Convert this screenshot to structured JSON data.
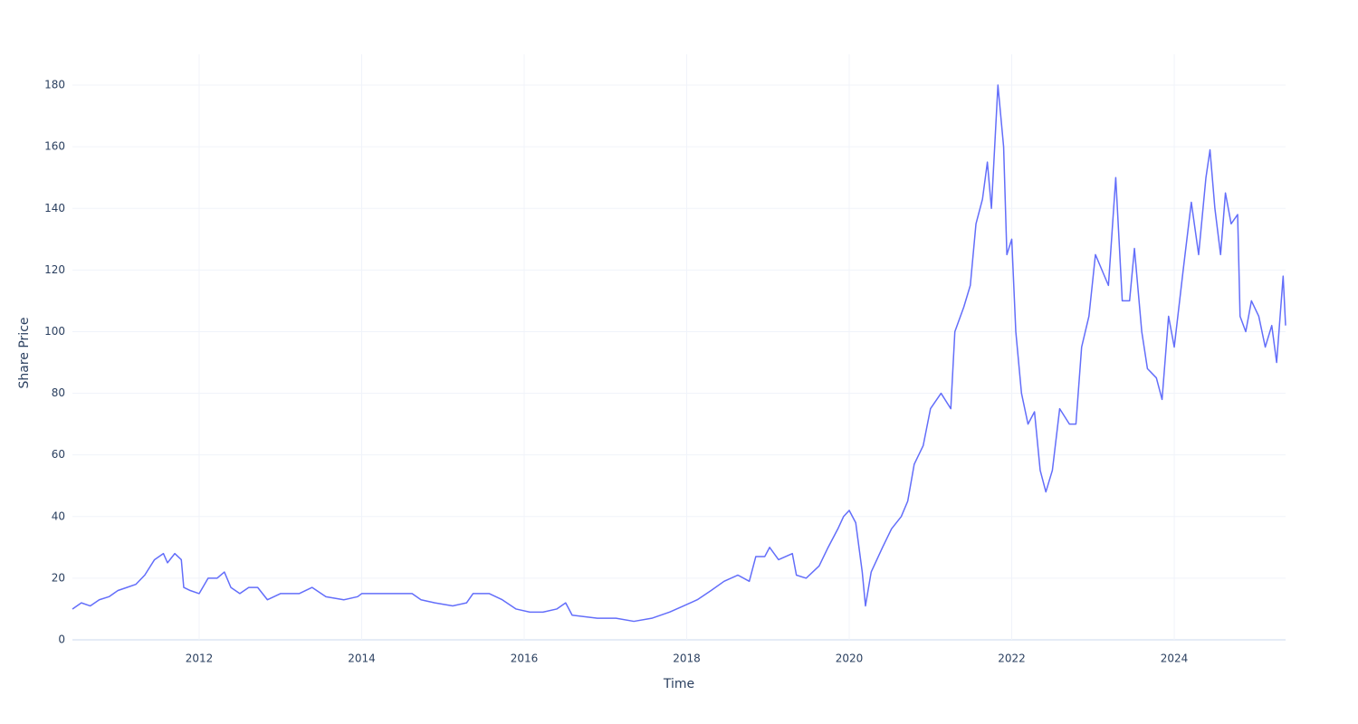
{
  "chart_data": {
    "type": "line",
    "x_label": "Time",
    "y_label": "Share Price",
    "x": [
      2010.44,
      2010.55,
      2010.66,
      2010.77,
      2010.89,
      2011.0,
      2011.11,
      2011.22,
      2011.33,
      2011.45,
      2011.56,
      2011.61,
      2011.7,
      2011.78,
      2011.81,
      2011.89,
      2012.0,
      2012.11,
      2012.22,
      2012.31,
      2012.39,
      2012.5,
      2012.61,
      2012.72,
      2012.84,
      2013.0,
      2013.23,
      2013.39,
      2013.56,
      2013.78,
      2013.95,
      2014.0,
      2014.23,
      2014.45,
      2014.62,
      2014.73,
      2014.9,
      2015.12,
      2015.29,
      2015.37,
      2015.57,
      2015.73,
      2015.9,
      2016.07,
      2016.23,
      2016.4,
      2016.51,
      2016.59,
      2016.9,
      2017.13,
      2017.35,
      2017.57,
      2017.79,
      2017.96,
      2018.13,
      2018.3,
      2018.46,
      2018.63,
      2018.77,
      2018.85,
      2018.96,
      2019.02,
      2019.13,
      2019.3,
      2019.35,
      2019.47,
      2019.63,
      2019.74,
      2019.86,
      2019.93,
      2020.0,
      2020.08,
      2020.16,
      2020.2,
      2020.27,
      2020.41,
      2020.52,
      2020.64,
      2020.72,
      2020.8,
      2020.91,
      2021.0,
      2021.13,
      2021.25,
      2021.3,
      2021.41,
      2021.49,
      2021.56,
      2021.64,
      2021.7,
      2021.75,
      2021.83,
      2021.9,
      2021.94,
      2022.0,
      2022.05,
      2022.12,
      2022.2,
      2022.28,
      2022.35,
      2022.42,
      2022.5,
      2022.59,
      2022.71,
      2022.79,
      2022.86,
      2022.95,
      2023.03,
      2023.11,
      2023.19,
      2023.28,
      2023.36,
      2023.45,
      2023.51,
      2023.6,
      2023.67,
      2023.78,
      2023.85,
      2023.93,
      2024.0,
      2024.11,
      2024.21,
      2024.3,
      2024.39,
      2024.44,
      2024.5,
      2024.57,
      2024.63,
      2024.7,
      2024.78,
      2024.81,
      2024.88,
      2024.95,
      2025.04,
      2025.12,
      2025.2,
      2025.26,
      2025.34,
      2025.37
    ],
    "series": [
      {
        "color": "#636efa",
        "values": [
          10,
          12,
          11,
          13,
          14,
          16,
          17,
          18,
          21,
          26,
          28,
          25,
          28,
          26,
          17,
          16,
          15,
          20,
          20,
          22,
          17,
          15,
          17,
          17,
          13,
          15,
          15,
          17,
          14,
          13,
          14,
          15,
          15,
          15,
          15,
          13,
          12,
          11,
          12,
          15,
          15,
          13,
          10,
          9,
          9,
          10,
          12,
          8,
          7,
          7,
          6,
          7,
          9,
          11,
          13,
          16,
          19,
          21,
          19,
          27,
          27,
          30,
          26,
          28,
          21,
          20,
          24,
          30,
          36,
          40,
          42,
          38,
          22,
          11,
          22,
          30,
          36,
          40,
          45,
          57,
          63,
          75,
          80,
          75,
          100,
          108,
          115,
          135,
          143,
          155,
          140,
          180,
          160,
          125,
          130,
          100,
          80,
          70,
          74,
          55,
          48,
          55,
          75,
          70,
          70,
          95,
          105,
          125,
          120,
          115,
          150,
          110,
          110,
          127,
          100,
          88,
          85,
          78,
          105,
          95,
          120,
          142,
          125,
          150,
          159,
          140,
          125,
          145,
          135,
          138,
          105,
          100,
          110,
          105,
          95,
          102,
          90,
          118,
          102
        ]
      }
    ],
    "xlim": [
      2010.44,
      2025.37
    ],
    "ylim": [
      0,
      190
    ],
    "xticks": [
      2012,
      2014,
      2016,
      2018,
      2020,
      2022,
      2024
    ],
    "yticks": [
      0,
      20,
      40,
      60,
      80,
      100,
      120,
      140,
      160,
      180
    ],
    "grid": true
  }
}
